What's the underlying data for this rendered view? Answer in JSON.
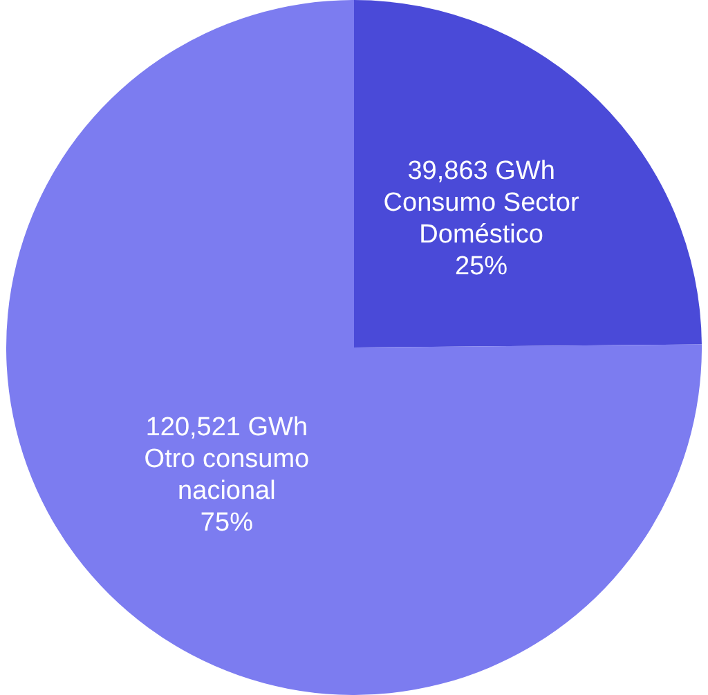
{
  "chart_data": {
    "type": "pie",
    "categories": [
      "Consumo Sector Doméstico",
      "Otro consumo nacional"
    ],
    "values": [
      39863,
      120521
    ],
    "colors": [
      "#4a4ad8",
      "#7c7cf0"
    ],
    "value_labels": [
      "39,863 GWh",
      "120,521 GWh"
    ],
    "annotations": [
      "25%",
      "75%"
    ],
    "legend": false
  }
}
